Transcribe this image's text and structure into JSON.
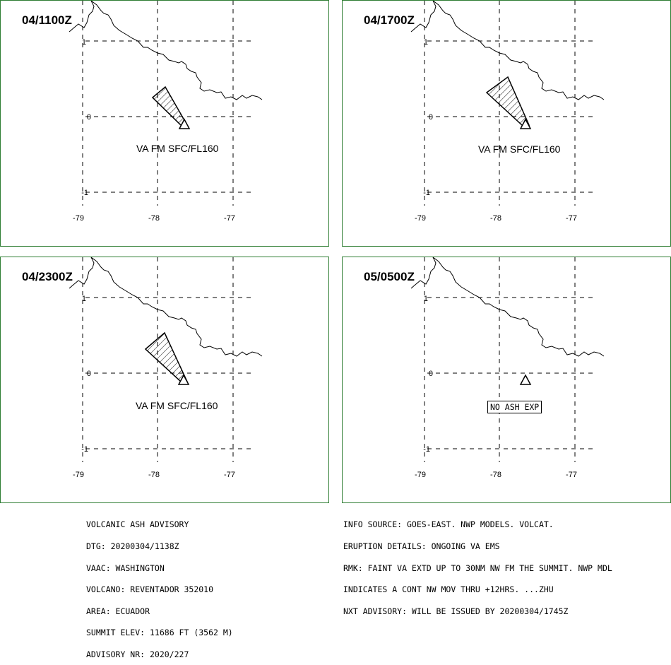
{
  "panels": [
    {
      "time": "04/1100Z",
      "label": "VA FM SFC/FL160",
      "ash": true
    },
    {
      "time": "04/1700Z",
      "label": "VA FM SFC/FL160",
      "ash": true
    },
    {
      "time": "04/2300Z",
      "label": "VA FM SFC/FL160",
      "ash": true
    },
    {
      "time": "05/0500Z",
      "label": "NO ASH EXP",
      "ash": false
    }
  ],
  "axes": {
    "lon_ticks": [
      "-79",
      "-78",
      "-77"
    ],
    "lat_ticks": [
      "1",
      "0",
      "-1"
    ]
  },
  "advisory_left": [
    "VOLCANIC ASH ADVISORY",
    "DTG: 20200304/1138Z",
    "VAAC: WASHINGTON",
    "VOLCANO: REVENTADOR 352010",
    "AREA: ECUADOR",
    "SUMMIT ELEV: 11686 FT (3562 M)",
    "ADVISORY NR: 2020/227"
  ],
  "advisory_right": [
    "INFO SOURCE: GOES-EAST. NWP MODELS. VOLCAT.",
    "ERUPTION DETAILS: ONGOING VA EMS",
    "RMK: FAINT VA EXTD UP TO 30NM NW FM THE SUMMIT. NWP MDL",
    "INDICATES A CONT NW MOV THRU +12HRS. ...ZHU",
    "NXT ADVISORY: WILL BE ISSUED BY 20200304/1745Z"
  ],
  "colors": {
    "border": "#2e7d32",
    "ink": "#000000"
  }
}
